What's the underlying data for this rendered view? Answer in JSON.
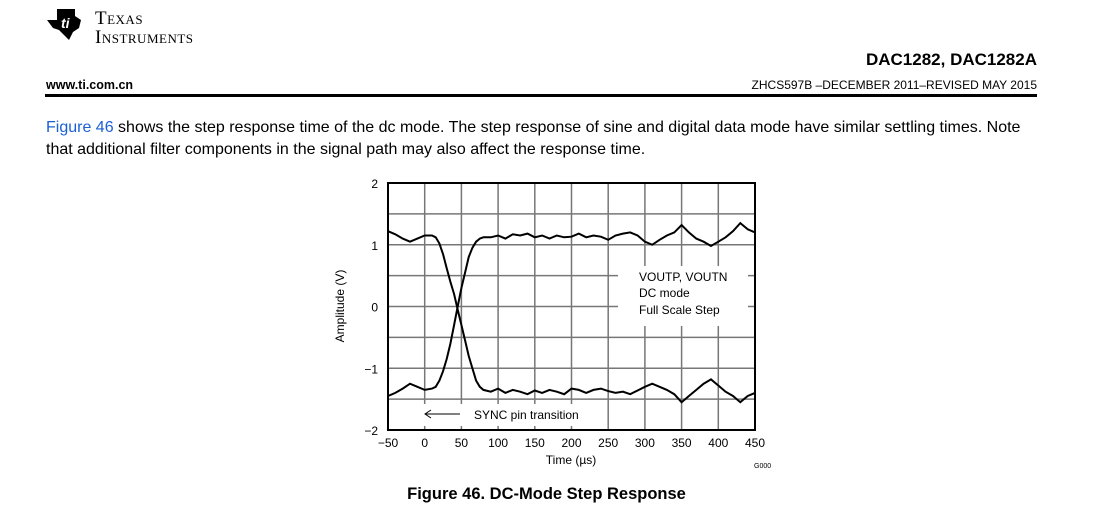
{
  "header": {
    "logo_text_line1": "Texas",
    "logo_text_line2": "Instruments",
    "doc_title": "DAC1282, DAC1282A",
    "website": "www.ti.com.cn",
    "doc_number": "ZHCS597B –DECEMBER 2011–REVISED MAY 2015"
  },
  "body": {
    "figure_link": "Figure 46",
    "paragraph_rest": " shows the step response time of the dc mode. The step response of sine and digital data mode have similar settling times. Note that additional filter components in the signal path may also affect the response time."
  },
  "figure": {
    "caption": "Figure 46.  DC-Mode Step Response",
    "code": "G000"
  },
  "chart_data": {
    "type": "line",
    "title": "",
    "xlabel": "Time (µs)",
    "ylabel": "Amplitude (V)",
    "xlim": [
      -50,
      450
    ],
    "ylim": [
      -2,
      2
    ],
    "xticks": [
      "−50",
      "0",
      "50",
      "100",
      "150",
      "200",
      "250",
      "300",
      "350",
      "400",
      "450"
    ],
    "yticks": [
      "2",
      "1",
      "0",
      "−1",
      "−2"
    ],
    "grid": true,
    "legend": {
      "lines": [
        "VOUTP, VOUTN",
        "DC mode",
        "Full Scale Step"
      ],
      "placement": "right"
    },
    "annotation": "SYNC pin transition",
    "x": [
      -50,
      -40,
      -30,
      -20,
      -10,
      0,
      10,
      15,
      20,
      25,
      30,
      35,
      40,
      45,
      50,
      55,
      60,
      65,
      70,
      75,
      80,
      90,
      100,
      110,
      120,
      130,
      140,
      150,
      160,
      170,
      180,
      190,
      200,
      210,
      220,
      230,
      240,
      250,
      260,
      270,
      280,
      290,
      300,
      310,
      320,
      330,
      340,
      350,
      360,
      370,
      380,
      390,
      400,
      410,
      420,
      430,
      440,
      450
    ],
    "series": [
      {
        "name": "VOUTP",
        "values": [
          1.22,
          1.17,
          1.1,
          1.05,
          1.1,
          1.15,
          1.15,
          1.12,
          1.02,
          0.85,
          0.62,
          0.4,
          0.2,
          -0.05,
          -0.3,
          -0.55,
          -0.8,
          -1.0,
          -1.2,
          -1.3,
          -1.35,
          -1.38,
          -1.33,
          -1.4,
          -1.35,
          -1.38,
          -1.42,
          -1.36,
          -1.4,
          -1.35,
          -1.38,
          -1.42,
          -1.33,
          -1.35,
          -1.4,
          -1.35,
          -1.33,
          -1.37,
          -1.4,
          -1.38,
          -1.42,
          -1.36,
          -1.3,
          -1.25,
          -1.3,
          -1.35,
          -1.42,
          -1.55,
          -1.45,
          -1.35,
          -1.25,
          -1.18,
          -1.28,
          -1.38,
          -1.45,
          -1.55,
          -1.45,
          -1.4
        ]
      },
      {
        "name": "VOUTN",
        "values": [
          -1.45,
          -1.4,
          -1.33,
          -1.25,
          -1.3,
          -1.35,
          -1.33,
          -1.3,
          -1.2,
          -1.05,
          -0.85,
          -0.6,
          -0.3,
          0.0,
          0.3,
          0.55,
          0.8,
          0.95,
          1.05,
          1.1,
          1.12,
          1.12,
          1.15,
          1.1,
          1.17,
          1.15,
          1.18,
          1.12,
          1.15,
          1.1,
          1.15,
          1.12,
          1.13,
          1.18,
          1.12,
          1.15,
          1.13,
          1.08,
          1.15,
          1.18,
          1.2,
          1.15,
          1.05,
          1.0,
          1.08,
          1.15,
          1.2,
          1.32,
          1.2,
          1.1,
          1.05,
          0.98,
          1.05,
          1.12,
          1.22,
          1.35,
          1.25,
          1.2
        ]
      }
    ]
  }
}
